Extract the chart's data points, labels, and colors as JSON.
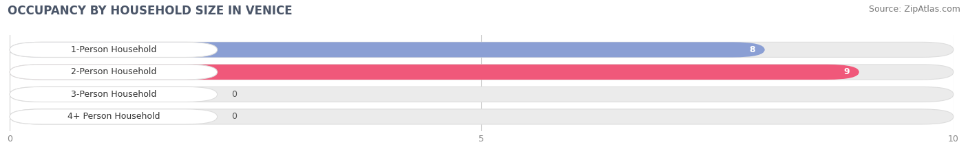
{
  "title": "OCCUPANCY BY HOUSEHOLD SIZE IN VENICE",
  "source": "Source: ZipAtlas.com",
  "categories": [
    "1-Person Household",
    "2-Person Household",
    "3-Person Household",
    "4+ Person Household"
  ],
  "values": [
    8,
    9,
    0,
    0
  ],
  "bar_colors": [
    "#8b9fd4",
    "#f0587a",
    "#f5c07a",
    "#f0a0a8"
  ],
  "xlim": [
    0,
    10
  ],
  "xticks": [
    0,
    5,
    10
  ],
  "background_color": "#ffffff",
  "bar_bg_color": "#ebebeb",
  "bar_bg_edge_color": "#dddddd",
  "title_fontsize": 12,
  "source_fontsize": 9,
  "label_fontsize": 9,
  "value_fontsize": 9
}
